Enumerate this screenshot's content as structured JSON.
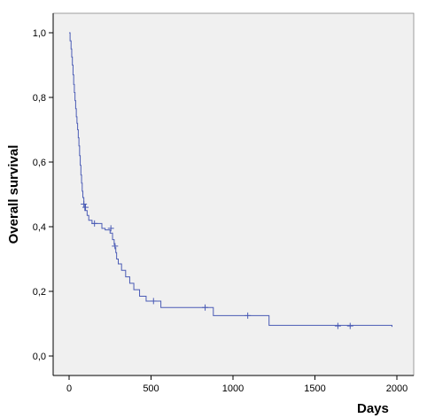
{
  "chart_data": {
    "type": "line",
    "title": "",
    "xlabel": "Days",
    "ylabel": "Overall survival",
    "xlim": [
      0,
      2000
    ],
    "ylim": [
      0,
      1.0
    ],
    "x_ticks": [
      0,
      500,
      1000,
      1500,
      2000
    ],
    "x_tick_labels": [
      "0",
      "500",
      "1000",
      "1500",
      "2000"
    ],
    "y_ticks": [
      0,
      0.2,
      0.4,
      0.6,
      0.8,
      1.0
    ],
    "y_tick_labels": [
      "0,0",
      "0,2",
      "0,4",
      "0,6",
      "0,8",
      "1,0"
    ],
    "grid": false,
    "legend": "none",
    "colors": {
      "plot_background": "#f0f0f0",
      "line": "#4a5bb5",
      "axis": "#000000"
    },
    "series": [
      {
        "step": true,
        "x": [
          0,
          6,
          12,
          16,
          20,
          24,
          28,
          32,
          36,
          40,
          44,
          48,
          52,
          56,
          60,
          64,
          68,
          72,
          76,
          80,
          84,
          90,
          96,
          110,
          120,
          140,
          165,
          200,
          220,
          250,
          265,
          275,
          280,
          285,
          290,
          300,
          320,
          345,
          370,
          395,
          430,
          470,
          560,
          850,
          880,
          1220,
          1970
        ],
        "y": [
          1.0,
          0.975,
          0.95,
          0.925,
          0.9,
          0.87,
          0.84,
          0.815,
          0.79,
          0.765,
          0.74,
          0.72,
          0.7,
          0.675,
          0.65,
          0.62,
          0.59,
          0.56,
          0.535,
          0.51,
          0.49,
          0.47,
          0.45,
          0.435,
          0.42,
          0.41,
          0.41,
          0.395,
          0.39,
          0.38,
          0.36,
          0.345,
          0.335,
          0.32,
          0.3,
          0.285,
          0.265,
          0.245,
          0.225,
          0.205,
          0.185,
          0.17,
          0.15,
          0.15,
          0.125,
          0.095,
          0.09
        ]
      }
    ],
    "censor_marks": [
      {
        "x": 90,
        "y": 0.47
      },
      {
        "x": 100,
        "y": 0.46
      },
      {
        "x": 155,
        "y": 0.41
      },
      {
        "x": 255,
        "y": 0.395
      },
      {
        "x": 280,
        "y": 0.34
      },
      {
        "x": 515,
        "y": 0.17
      },
      {
        "x": 830,
        "y": 0.15
      },
      {
        "x": 1090,
        "y": 0.125
      },
      {
        "x": 1640,
        "y": 0.093
      },
      {
        "x": 1715,
        "y": 0.093
      }
    ]
  }
}
